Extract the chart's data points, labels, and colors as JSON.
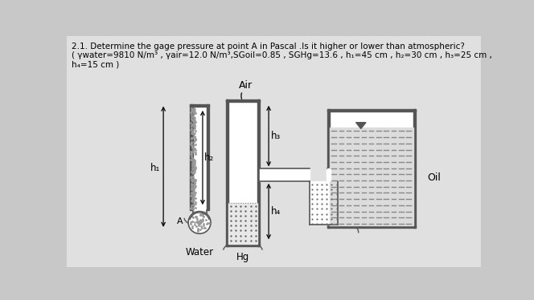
{
  "bg_color": "#c8c8c8",
  "title_line1": "2.1. Determine the gage pressure at point A in Pascal .Is it higher or lower than atmospheric?",
  "title_line2": "( γwater=9810 N/m³ , γair=12.0 N/m³,SGoil=0.85 , SGHg=13.6 , h₁=45 cm , h₂=30 cm , h₃=25 cm ,",
  "title_line3": "h₄=15 cm )",
  "label_Air": "Air",
  "label_Water": "Water",
  "label_Hg": "Hg",
  "label_Oil": "Oil",
  "label_h1": "h₁",
  "label_h2": "h₂",
  "label_h3": "h₃",
  "label_h4": "h₄",
  "label_A": "A",
  "wall_color": "#555555",
  "fill_color": "#e8e8e8",
  "oil_fill_color": "#e0e0e0",
  "hg_dot_color": "#666666",
  "water_dot_color": "#999999"
}
